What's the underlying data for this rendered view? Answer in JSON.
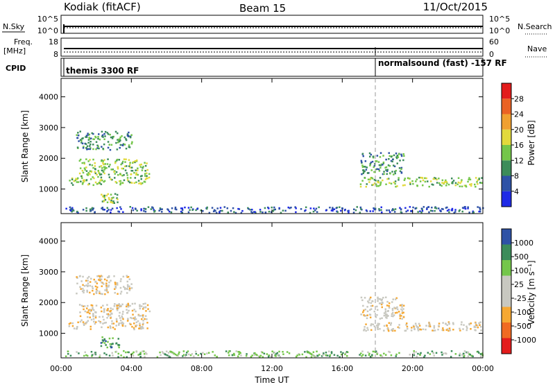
{
  "header": {
    "radar": "Kodiak (fitACF)",
    "beam": "Beam 15",
    "date": "11/Oct/2015"
  },
  "top_panels": {
    "nsky_label": "N.Sky",
    "nsky_ticks": [
      "10^5",
      "10^0"
    ],
    "nsearch_label": "N.Search",
    "nsearch_ticks": [
      "10^5",
      "10^0"
    ],
    "freq_label_1": "Freq.",
    "freq_label_2": "[MHz]",
    "freq_ticks": [
      "18",
      "8"
    ],
    "nave_label": "Nave",
    "nave_ticks": [
      "60",
      "0"
    ],
    "cpid_label": "CPID",
    "cpid_left": "themis 3300 RF",
    "cpid_right": "normalsound (fast) -157 RF"
  },
  "x_axis": {
    "ticks": [
      "00:00",
      "04:00",
      "08:00",
      "12:00",
      "16:00",
      "20:00",
      "00:00"
    ],
    "label": "Time UT"
  },
  "colors": {
    "power": [
      "#1f2be6",
      "#2e52a6",
      "#3c8c5a",
      "#74c64a",
      "#e2d93c",
      "#f0a030",
      "#ea6224",
      "#e31c1c"
    ],
    "velocity": [
      "#e31c1c",
      "#f06a22",
      "#f6a832",
      "#c8c8c0",
      "#c8c8c0",
      "#74c64a",
      "#3c8c5a",
      "#2e52a6"
    ]
  },
  "chart_data": [
    {
      "type": "heatmap",
      "ylabel": "Slant Range [km]",
      "ylim": [
        200,
        4600
      ],
      "yticks": [
        "1000",
        "2000",
        "3000",
        "4000"
      ],
      "xlim_hours": [
        0,
        24
      ],
      "colorbar": {
        "label": "Power [dB]",
        "ticks": [
          "4",
          "8",
          "12",
          "16",
          "20",
          "24",
          "28"
        ]
      },
      "regions": [
        {
          "t": [
            0.4,
            4.9
          ],
          "range": [
            1150,
            1400
          ],
          "level": 3
        },
        {
          "t": [
            1.0,
            5.0
          ],
          "range": [
            1400,
            2000
          ],
          "level": 3
        },
        {
          "t": [
            0.8,
            4.0
          ],
          "range": [
            2300,
            2900
          ],
          "level": 2
        },
        {
          "t": [
            2.2,
            3.3
          ],
          "range": [
            560,
            900
          ],
          "level": 3
        },
        {
          "t": [
            17.0,
            24.0
          ],
          "range": [
            1100,
            1400
          ],
          "level": 3
        },
        {
          "t": [
            17.0,
            19.5
          ],
          "range": [
            1500,
            2200
          ],
          "level": 2
        },
        {
          "t": [
            0.2,
            24.0
          ],
          "range": [
            250,
            450
          ],
          "level": 1
        }
      ]
    },
    {
      "type": "heatmap",
      "ylabel": "Slant Range [km]",
      "ylim": [
        200,
        4600
      ],
      "yticks": [
        "1000",
        "2000",
        "3000",
        "4000"
      ],
      "xlim_hours": [
        0,
        24
      ],
      "colorbar": {
        "label": "Velocity [m s⁻¹]",
        "ticks": [
          "1000",
          "500",
          "100",
          "25",
          "-25",
          "-100",
          "-500",
          "-1000"
        ]
      },
      "regions": [
        {
          "t": [
            0.4,
            4.9
          ],
          "range": [
            1150,
            1400
          ],
          "level": 3
        },
        {
          "t": [
            1.0,
            5.0
          ],
          "range": [
            1400,
            2000
          ],
          "level": 3
        },
        {
          "t": [
            0.8,
            4.0
          ],
          "range": [
            2300,
            2900
          ],
          "level": 3
        },
        {
          "t": [
            2.2,
            3.3
          ],
          "range": [
            560,
            900
          ],
          "level": 6
        },
        {
          "t": [
            17.0,
            24.0
          ],
          "range": [
            1100,
            1400
          ],
          "level": 3
        },
        {
          "t": [
            17.0,
            19.5
          ],
          "range": [
            1500,
            2200
          ],
          "level": 3
        },
        {
          "t": [
            0.2,
            24.0
          ],
          "range": [
            250,
            450
          ],
          "level": 5
        }
      ]
    }
  ]
}
